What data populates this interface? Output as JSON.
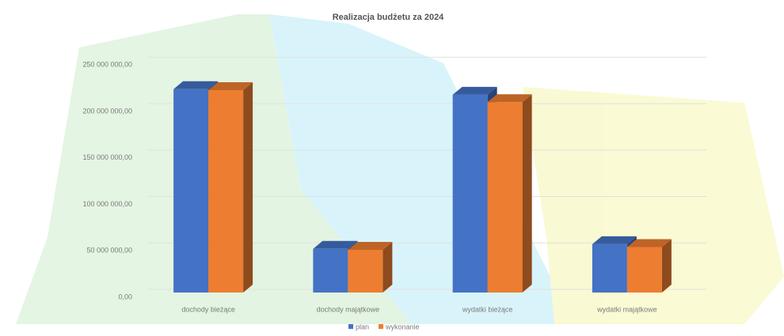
{
  "chart_data": {
    "type": "bar3d",
    "title": "Realizacja budżetu za 2024",
    "categories": [
      "dochody bieżące",
      "dochody majątkowe",
      "wydatki bieżące",
      "wydatki majątkowe"
    ],
    "series": [
      {
        "name": "plan",
        "color": "#4472c4",
        "values": [
          219000000,
          47000000,
          213000000,
          52000000
        ]
      },
      {
        "name": "wykonanie",
        "color": "#ed7d31",
        "values": [
          218000000,
          46000000,
          205000000,
          49000000
        ]
      }
    ],
    "ylim": [
      0,
      275000000
    ],
    "yticks": [
      {
        "value": 0,
        "label": "0,00"
      },
      {
        "value": 50000000,
        "label": "50 000 000,00"
      },
      {
        "value": 100000000,
        "label": "100 000 000,00"
      },
      {
        "value": 150000000,
        "label": "150 000 000,00"
      },
      {
        "value": 200000000,
        "label": "200 000 000,00"
      },
      {
        "value": 250000000,
        "label": "250 000 000,00"
      }
    ],
    "grid": true,
    "legend": "bottom"
  }
}
